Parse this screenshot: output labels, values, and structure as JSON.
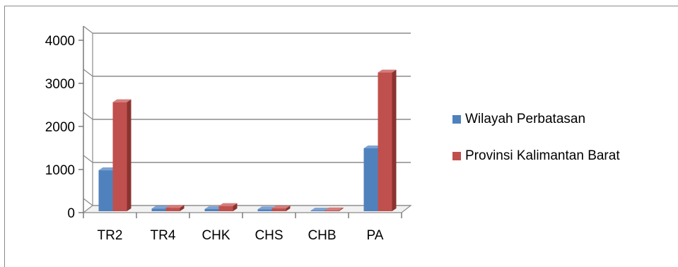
{
  "chart_data": {
    "type": "bar",
    "title": "",
    "xlabel": "",
    "ylabel": "",
    "categories": [
      "TR2",
      "TR4",
      "CHK",
      "CHS",
      "CHB",
      "PA"
    ],
    "series": [
      {
        "name": "Wilayah Perbatasan",
        "color": "#4F81BD",
        "values": [
          950,
          60,
          50,
          45,
          15,
          1460
        ]
      },
      {
        "name": "Provinsi Kalimantan Barat",
        "color": "#C0504D",
        "values": [
          2530,
          80,
          120,
          65,
          20,
          3220
        ]
      }
    ],
    "ylim": [
      0,
      4000
    ],
    "yticks": [
      "0",
      "1000",
      "2000",
      "3000",
      "4000"
    ],
    "grid": true,
    "legend": "right",
    "three_d": true
  }
}
